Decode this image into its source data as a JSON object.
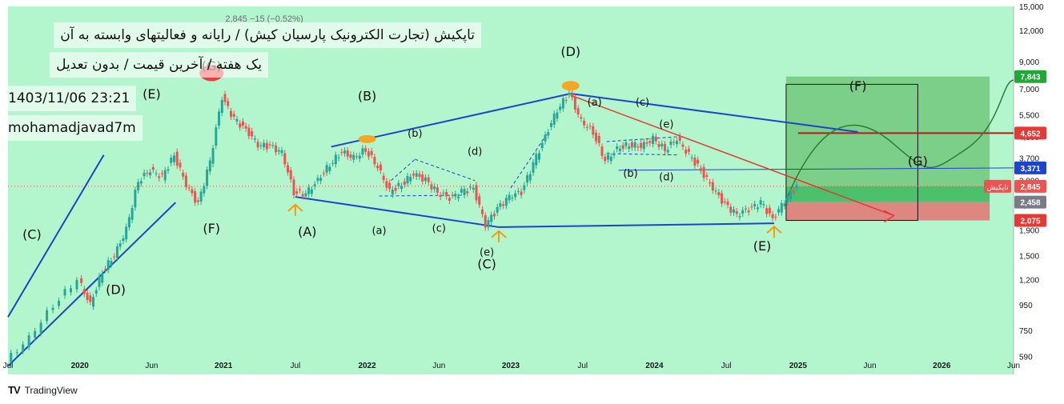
{
  "header": {
    "ohlc_text": "2,845  −15 (−0.52%)",
    "title": "تاپکیش (تجارت الکترونیک پارسیان کیش) / رایانه و فعالیتهای وابسته به آن",
    "subtitle": "یک هفته / آخرین قیمت / بدون تعدیل",
    "datetime": "1403/11/06 23:21",
    "author": "mohamadjavad7m"
  },
  "brand": {
    "name": "TradingView",
    "logo": "TV"
  },
  "colors": {
    "background": "#b3f5cc",
    "up": "#26a69a",
    "down": "#ef5350",
    "trendline": "#1e44cc",
    "red_arrow": "#e53935",
    "projection": "#2e7d32",
    "target_box": "#4caf50",
    "stop_box": "#e57373",
    "entry_box": "#32b455",
    "resistance_line": "#b71c1c"
  },
  "chart_data": {
    "type": "candlestick",
    "y_scale": "log",
    "ylim": [
      500,
      15000
    ],
    "x_range": [
      "2019-07",
      "2026-07"
    ],
    "y_ticks": [
      590,
      750,
      950,
      1200,
      1500,
      1900,
      2400,
      3000,
      3700,
      4500,
      5500,
      7000,
      9000,
      12000,
      15000
    ],
    "y_tick_labels": [
      "590",
      "750",
      "950",
      "1,200",
      "1,500",
      "1,900",
      "2,400",
      "3,000",
      "3,700",
      "4,500",
      "5,500",
      "7,000",
      "9,000",
      "12,000",
      "15,000"
    ],
    "x_ticks": [
      "2019-07",
      "2020-01",
      "2020-07",
      "2021-01",
      "2021-07",
      "2022-01",
      "2022-07",
      "2023-01",
      "2023-07",
      "2024-01",
      "2024-07",
      "2025-01",
      "2025-07",
      "2026-01",
      "2026-07"
    ],
    "x_tick_labels": [
      "Jul",
      "2020",
      "Jun",
      "2021",
      "Jul",
      "2022",
      "Jun",
      "2023",
      "Jul",
      "2024",
      "Jul",
      "2025",
      "Jun",
      "2026",
      "Jun"
    ],
    "price_points": [
      [
        "2019-07",
        560
      ],
      [
        "2019-09",
        700
      ],
      [
        "2019-11",
        950
      ],
      [
        "2020-01",
        1200
      ],
      [
        "2020-02",
        950
      ],
      [
        "2020-03",
        1300
      ],
      [
        "2020-04",
        1500
      ],
      [
        "2020-05",
        1900
      ],
      [
        "2020-06",
        3000
      ],
      [
        "2020-07",
        3300
      ],
      [
        "2020-08",
        3100
      ],
      [
        "2020-09",
        3800
      ],
      [
        "2020-10",
        2900
      ],
      [
        "2020-11",
        2400
      ],
      [
        "2020-12",
        3600
      ],
      [
        "2021-01",
        6500
      ],
      [
        "2021-02",
        5300
      ],
      [
        "2021-03",
        4800
      ],
      [
        "2021-04",
        4200
      ],
      [
        "2021-05",
        4100
      ],
      [
        "2021-06",
        3900
      ],
      [
        "2021-07",
        2700
      ],
      [
        "2021-08",
        2650
      ],
      [
        "2021-09",
        3000
      ],
      [
        "2021-10",
        3500
      ],
      [
        "2021-11",
        3900
      ],
      [
        "2021-12",
        3700
      ],
      [
        "2022-01",
        4000
      ],
      [
        "2022-02",
        3400
      ],
      [
        "2022-03",
        2700
      ],
      [
        "2022-04",
        2900
      ],
      [
        "2022-05",
        3200
      ],
      [
        "2022-06",
        3000
      ],
      [
        "2022-07",
        2700
      ],
      [
        "2022-08",
        2550
      ],
      [
        "2022-09",
        2700
      ],
      [
        "2022-10",
        2800
      ],
      [
        "2022-11",
        2000
      ],
      [
        "2022-12",
        2300
      ],
      [
        "2023-01",
        2600
      ],
      [
        "2023-02",
        2700
      ],
      [
        "2023-03",
        3500
      ],
      [
        "2023-04",
        4500
      ],
      [
        "2023-05",
        5800
      ],
      [
        "2023-06",
        6700
      ],
      [
        "2023-07",
        5200
      ],
      [
        "2023-08",
        4700
      ],
      [
        "2023-09",
        3600
      ],
      [
        "2023-10",
        4000
      ],
      [
        "2023-11",
        4200
      ],
      [
        "2023-12",
        4100
      ],
      [
        "2024-01",
        4400
      ],
      [
        "2024-02",
        4000
      ],
      [
        "2024-03",
        4400
      ],
      [
        "2024-04",
        3800
      ],
      [
        "2024-05",
        3300
      ],
      [
        "2024-06",
        2800
      ],
      [
        "2024-07",
        2400
      ],
      [
        "2024-08",
        2200
      ],
      [
        "2024-09",
        2300
      ],
      [
        "2024-10",
        2450
      ],
      [
        "2024-11",
        2100
      ],
      [
        "2024-12",
        2500
      ],
      [
        "2025-01",
        2845
      ]
    ],
    "price_levels": [
      {
        "label": "7,843",
        "value": 7843,
        "color": "#22a83a"
      },
      {
        "label": "4,652",
        "value": 4652,
        "color": "#e53935"
      },
      {
        "label": "3,371",
        "value": 3371,
        "color": "#1e44cc"
      },
      {
        "label": "2,845",
        "value": 2845,
        "color": "#ef5350",
        "tag": "تاپکیش"
      },
      {
        "label": "2,458",
        "value": 2458,
        "color": "#787b86"
      },
      {
        "label": "2,075",
        "value": 2075,
        "color": "#e53935"
      }
    ],
    "wave_labels": [
      {
        "text": "(C)",
        "t": "2019-09",
        "p": 1750
      },
      {
        "text": "(D)",
        "t": "2020-04",
        "p": 1050
      },
      {
        "text": "(E)",
        "t": "2020-07",
        "p": 6400
      },
      {
        "text": "(G)",
        "t": "2020-12",
        "p": 8300
      },
      {
        "text": "(F)",
        "t": "2020-12",
        "p": 1850
      },
      {
        "text": "(A)",
        "t": "2021-08",
        "p": 1800
      },
      {
        "text": "(B)",
        "t": "2022-01",
        "p": 6300
      },
      {
        "text": "(b)",
        "t": "2022-05",
        "p": 4500
      },
      {
        "text": "(a)",
        "t": "2022-02",
        "p": 1830
      },
      {
        "text": "(c)",
        "t": "2022-07",
        "p": 1870
      },
      {
        "text": "(d)",
        "t": "2022-10",
        "p": 3800
      },
      {
        "text": "(e)",
        "t": "2022-11",
        "p": 1500
      },
      {
        "text": "(C)",
        "t": "2022-11",
        "p": 1330
      },
      {
        "text": "(D)",
        "t": "2023-06",
        "p": 9500
      },
      {
        "text": "(a)",
        "t": "2023-08",
        "p": 6000
      },
      {
        "text": "(c)",
        "t": "2023-12",
        "p": 6000
      },
      {
        "text": "(e)",
        "t": "2024-02",
        "p": 4900
      },
      {
        "text": "(b)",
        "t": "2023-11",
        "p": 3100
      },
      {
        "text": "(d)",
        "t": "2024-02",
        "p": 3000
      },
      {
        "text": "(E)",
        "t": "2024-10",
        "p": 1570
      },
      {
        "text": "(F)",
        "t": "2025-06",
        "p": 6900
      },
      {
        "text": "(G)",
        "t": "2025-11",
        "p": 3450
      }
    ]
  }
}
